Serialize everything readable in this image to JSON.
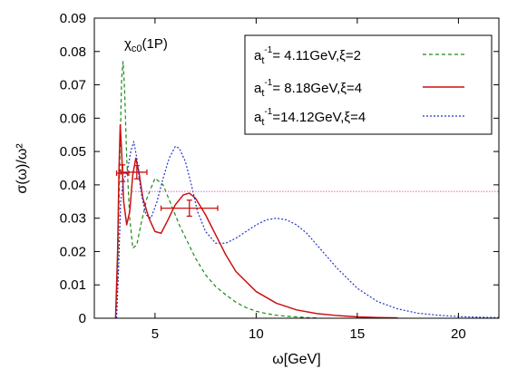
{
  "chart_data": {
    "type": "line",
    "xlabel": "ω[GeV]",
    "ylabel": "σ(ω)/ω²",
    "xlim": [
      2,
      22
    ],
    "ylim": [
      0,
      0.09
    ],
    "x_ticks": [
      5,
      10,
      15,
      20
    ],
    "y_ticks": [
      0,
      0.01,
      0.02,
      0.03,
      0.04,
      0.05,
      0.06,
      0.07,
      0.08,
      0.09
    ],
    "x_tick_labels": [
      "5",
      "10",
      "15",
      "20"
    ],
    "y_tick_labels": [
      "0",
      "0.01",
      "0.02",
      "0.03",
      "0.04",
      "0.05",
      "0.06",
      "0.07",
      "0.08",
      "0.09"
    ],
    "grid": false,
    "legend_position": "top-right",
    "annotation": {
      "base": "χ",
      "sub": "c0",
      "tail": "(1P)",
      "x": 3.4,
      "y": 0.0825
    },
    "series": [
      {
        "name": "a_t^-1= 4.11GeV,ξ=2",
        "legend_parts": {
          "pre": "a",
          "sub": "t",
          "sup": "-1",
          "post": "= 4.11GeV,ξ=2"
        },
        "color": "#1a8a1a",
        "dash": "4,3",
        "x": [
          3.05,
          3.15,
          3.25,
          3.35,
          3.42,
          3.5,
          3.6,
          3.75,
          3.9,
          4.1,
          4.3,
          4.6,
          5.0,
          5.4,
          5.8,
          6.2,
          6.6,
          7.0,
          7.5,
          8.0,
          8.5,
          9.0,
          9.5,
          10.0,
          10.5,
          11.0,
          11.5,
          12.0,
          12.5,
          13.0
        ],
        "y": [
          0.0,
          0.012,
          0.045,
          0.072,
          0.077,
          0.068,
          0.048,
          0.03,
          0.021,
          0.022,
          0.028,
          0.036,
          0.042,
          0.04,
          0.034,
          0.028,
          0.023,
          0.018,
          0.013,
          0.0095,
          0.007,
          0.0048,
          0.0032,
          0.0021,
          0.0014,
          0.0009,
          0.0006,
          0.0004,
          0.0002,
          0.0001
        ]
      },
      {
        "name": "a_t^-1= 8.18GeV,ξ=4",
        "legend_parts": {
          "pre": "a",
          "sub": "t",
          "sup": "-1",
          "post": "= 8.18GeV,ξ=4"
        },
        "color": "#cc1111",
        "dash": "",
        "x": [
          3.05,
          3.15,
          3.22,
          3.28,
          3.35,
          3.45,
          3.6,
          3.75,
          3.9,
          4.05,
          4.2,
          4.4,
          4.7,
          5.0,
          5.3,
          5.6,
          6.0,
          6.4,
          6.7,
          7.0,
          7.5,
          8.0,
          8.5,
          9.0,
          10.0,
          11.0,
          12.0,
          13.0,
          14.0,
          15.0,
          16.0,
          17.0
        ],
        "y": [
          0.0,
          0.02,
          0.045,
          0.058,
          0.05,
          0.035,
          0.028,
          0.032,
          0.043,
          0.048,
          0.044,
          0.036,
          0.03,
          0.026,
          0.0255,
          0.029,
          0.034,
          0.037,
          0.0375,
          0.036,
          0.031,
          0.025,
          0.019,
          0.014,
          0.008,
          0.0045,
          0.0025,
          0.0014,
          0.0008,
          0.0004,
          0.0002,
          0.0001
        ]
      },
      {
        "name": "a_t^-1=14.12GeV,ξ=4",
        "legend_parts": {
          "pre": "a",
          "sub": "t",
          "sup": "-1",
          "post": "=14.12GeV,ξ=4"
        },
        "color": "#2233cc",
        "dash": "2,2",
        "x": [
          3.1,
          3.2,
          3.3,
          3.45,
          3.6,
          3.8,
          3.95,
          4.1,
          4.3,
          4.55,
          4.8,
          5.1,
          5.4,
          5.7,
          6.0,
          6.2,
          6.5,
          6.8,
          7.1,
          7.5,
          8.0,
          8.5,
          9.0,
          9.5,
          10.0,
          10.5,
          11.0,
          11.5,
          12.0,
          12.5,
          13.0,
          14.0,
          15.0,
          16.0,
          17.0,
          18.0,
          19.0,
          20.0,
          21.0,
          22.0
        ],
        "y": [
          0.0,
          0.015,
          0.035,
          0.042,
          0.043,
          0.05,
          0.053,
          0.048,
          0.038,
          0.031,
          0.03,
          0.035,
          0.042,
          0.048,
          0.0515,
          0.051,
          0.047,
          0.04,
          0.032,
          0.026,
          0.0225,
          0.0225,
          0.024,
          0.026,
          0.028,
          0.0295,
          0.03,
          0.0295,
          0.028,
          0.0255,
          0.022,
          0.015,
          0.009,
          0.005,
          0.0028,
          0.0015,
          0.0009,
          0.0005,
          0.0003,
          0.0002
        ]
      }
    ],
    "reference_line": {
      "color": "#e040c0",
      "dash": "1,2",
      "x_start": 3.9,
      "x_end": 22,
      "y": 0.038
    },
    "error_bars": [
      {
        "x": 3.4,
        "y": 0.0435,
        "xerr": [
          3.1,
          3.7
        ],
        "yerr": [
          0.041,
          0.046
        ]
      },
      {
        "x": 4.1,
        "y": 0.0438,
        "xerr": [
          3.3,
          4.6
        ],
        "yerr": [
          0.0418,
          0.0458
        ]
      },
      {
        "x": 6.7,
        "y": 0.033,
        "xerr": [
          5.3,
          8.1
        ],
        "yerr": [
          0.0306,
          0.0354
        ]
      }
    ]
  }
}
